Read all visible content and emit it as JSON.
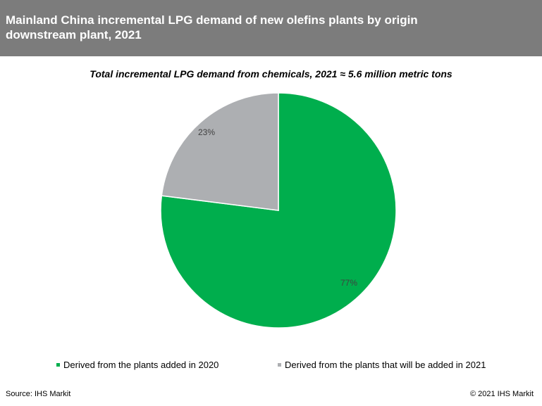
{
  "header": {
    "title_line1": "Mainland China incremental LPG demand of new olefins plants by origin",
    "title_line2": "downstream plant, 2021"
  },
  "subtitle": "Total incremental LPG demand from chemicals, 2021 ≈ 5.6 million metric tons",
  "footer": {
    "source": "Source: IHS Markit",
    "copyright": "© 2021 IHS Markit"
  },
  "colors": {
    "header_bg": "#7c7c7c",
    "green": "#00ae4d",
    "gray": "#adafb2"
  },
  "chart_data": {
    "type": "pie",
    "title": "Mainland China incremental LPG demand of new olefins plants by origin downstream plant, 2021",
    "subtitle": "Total incremental LPG demand from chemicals, 2021 ≈ 5.6 million metric tons",
    "legend_position": "bottom",
    "slices": [
      {
        "name": "Derived from the plants added in 2020",
        "value": 77,
        "label": "77%",
        "color": "#00ae4d"
      },
      {
        "name": "Derived from the plants that will be added in 2021",
        "value": 23,
        "label": "23%",
        "color": "#adafb2"
      }
    ]
  }
}
